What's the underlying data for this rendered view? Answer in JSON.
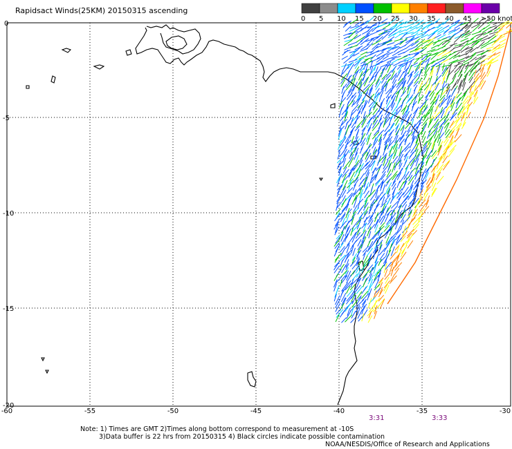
{
  "title": "Rapidsact Winds(25KM) 20150315 ascending",
  "legend": {
    "labels": [
      "0",
      "5",
      "10",
      "15",
      "20",
      "25",
      "30",
      "35",
      "40",
      "45",
      ">50 knots"
    ],
    "colors": [
      "#404040",
      "#8c8c8c",
      "#00d0ff",
      "#0050ff",
      "#00c000",
      "#ffff00",
      "#ff8000",
      "#ff2020",
      "#8b5a2b",
      "#ff00ff",
      "#6a00a8"
    ]
  },
  "axes": {
    "x_ticks": [
      "-60",
      "-55",
      "-50",
      "-45",
      "-40",
      "-35",
      "-30"
    ],
    "y_ticks": [
      "0",
      "-5",
      "-10",
      "-15",
      "-20"
    ],
    "lon_range": [
      -60,
      -30
    ],
    "lat_range": [
      0,
      -20
    ]
  },
  "times": [
    "3:31",
    "3:33"
  ],
  "notes": {
    "line1": "Note: 1) Times are GMT 2)Times along bottom correspond to measurement at -10S",
    "line2": "3)Data buffer is 22 hrs from 20150315 4) Black circles indicate possible contamination",
    "line3": "NOAA/NESDIS/Office of Research and Applications"
  }
}
